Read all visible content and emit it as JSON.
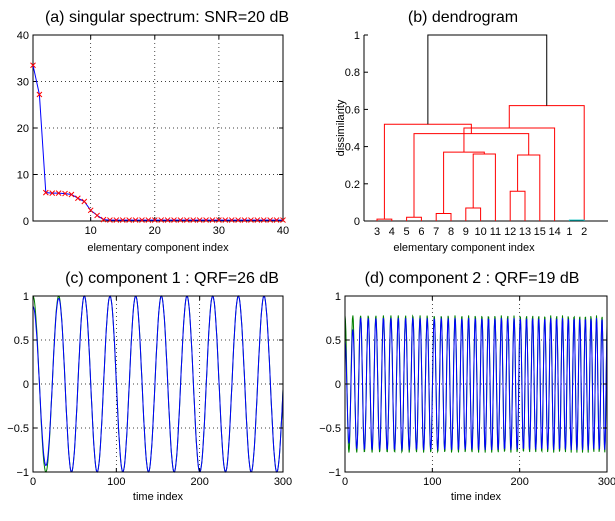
{
  "chart_data": [
    {
      "type": "line",
      "title": "(a) singular spectrum: SNR=20 dB",
      "xlabel": "elementary component index",
      "ylabel": "",
      "xlim": [
        1,
        40
      ],
      "ylim": [
        0,
        40
      ],
      "xticks": [
        10,
        20,
        30,
        40
      ],
      "yticks": [
        0,
        10,
        20,
        30,
        40
      ],
      "grid": true,
      "line_color": "#0000ff",
      "marker_color": "#ff0000",
      "series": [
        {
          "x": [
            1,
            2,
            3,
            4,
            5,
            6,
            7,
            8,
            9,
            10,
            11,
            12,
            13,
            14,
            15,
            16,
            17,
            18,
            19,
            20,
            21,
            22,
            23,
            24,
            25,
            26,
            27,
            28,
            29,
            30,
            31,
            32,
            33,
            34,
            35,
            36,
            37,
            38,
            39,
            40
          ],
          "values": [
            33.5,
            27.2,
            6.1,
            6.0,
            6.0,
            5.9,
            5.7,
            4.9,
            4.2,
            2.3,
            1.2,
            0.3,
            0.2,
            0.2,
            0.2,
            0.2,
            0.2,
            0.2,
            0.2,
            0.2,
            0.2,
            0.2,
            0.2,
            0.2,
            0.2,
            0.2,
            0.2,
            0.2,
            0.2,
            0.2,
            0.2,
            0.2,
            0.2,
            0.2,
            0.2,
            0.2,
            0.2,
            0.2,
            0.2,
            0.2
          ]
        }
      ]
    },
    {
      "type": "dendrogram",
      "title": "(b) dendrogram",
      "xlabel": "elementary component index",
      "ylabel": "dissimilarity",
      "ylim": [
        0,
        1
      ],
      "yticks": [
        0,
        0.2,
        0.4,
        0.6,
        0.8,
        1
      ],
      "leaves": [
        "3",
        "4",
        "5",
        "6",
        "7",
        "8",
        "9",
        "10",
        "11",
        "12",
        "13",
        "15",
        "14",
        "1",
        "2"
      ],
      "colors": {
        "cluster_a": "#ff0000",
        "cluster_b": "#00c0c0",
        "root": "#000000"
      },
      "links": [
        {
          "l": 0,
          "r": 1,
          "h": 0.01,
          "c": "cluster_a"
        },
        {
          "l": 2,
          "r": 3,
          "h": 0.02,
          "c": "cluster_a"
        },
        {
          "l": 4,
          "r": 5,
          "h": 0.04,
          "c": "cluster_a"
        },
        {
          "l": 6,
          "r": 7,
          "h": 0.07,
          "c": "cluster_a"
        },
        {
          "l": 9,
          "r": 10,
          "h": 0.16,
          "c": "cluster_a"
        },
        {
          "l": 8,
          "r": 18,
          "h": 0.36,
          "c": "cluster_a"
        },
        {
          "l": 19,
          "r": 11,
          "h": 0.355,
          "c": "cluster_a"
        },
        {
          "l": 17,
          "r": 20,
          "h": 0.37,
          "c": "cluster_a"
        },
        {
          "l": 16,
          "r": 21,
          "h": 0.47,
          "c": "cluster_a"
        },
        {
          "l": 22,
          "r": 12,
          "h": 0.5,
          "c": "cluster_a"
        },
        {
          "l": 15,
          "r": 23,
          "h": 0.52,
          "c": "cluster_a"
        },
        {
          "l": 14,
          "r": 24,
          "h": 0.62,
          "c": "cluster_a"
        },
        {
          "l": 13,
          "r": 12,
          "h": 0.005,
          "c": "cluster_b",
          "leaves": [
            13,
            14
          ]
        },
        {
          "l": 25,
          "r": 26,
          "h": 1.0,
          "c": "root"
        }
      ]
    },
    {
      "type": "line",
      "title": "(c) component 1 : QRF=26 dB",
      "xlabel": "time index",
      "ylabel": "",
      "xlim": [
        0,
        300
      ],
      "ylim": [
        -1,
        1
      ],
      "xticks": [
        0,
        100,
        200,
        300
      ],
      "yticks": [
        -1,
        -0.5,
        0,
        0.5,
        1
      ],
      "grid": true,
      "series": [
        {
          "name": "",
          "color": "#0000ff",
          "kind": "estimate",
          "period": 30.8,
          "amp_start": 0.88,
          "amp_end": 1.0
        },
        {
          "name": "",
          "color": "#008000",
          "kind": "reference",
          "period": 30.8,
          "amp_start": 1.0,
          "amp_end": 1.0
        }
      ]
    },
    {
      "type": "line",
      "title": "(d) component 2 : QRF=19 dB",
      "xlabel": "time index",
      "ylabel": "",
      "xlim": [
        0,
        300
      ],
      "ylim": [
        -1,
        1
      ],
      "xticks": [
        0,
        100,
        200,
        300
      ],
      "yticks": [
        -1,
        -0.5,
        0,
        0.5,
        1
      ],
      "grid": true,
      "series": [
        {
          "name": "",
          "color": "#0000ff",
          "kind": "estimate",
          "period_start": 9.0,
          "period_end": 6.2,
          "amp": 0.75
        },
        {
          "name": "",
          "color": "#008000",
          "kind": "reference",
          "period_start": 9.0,
          "period_end": 6.2,
          "amp": 0.78
        }
      ]
    }
  ]
}
